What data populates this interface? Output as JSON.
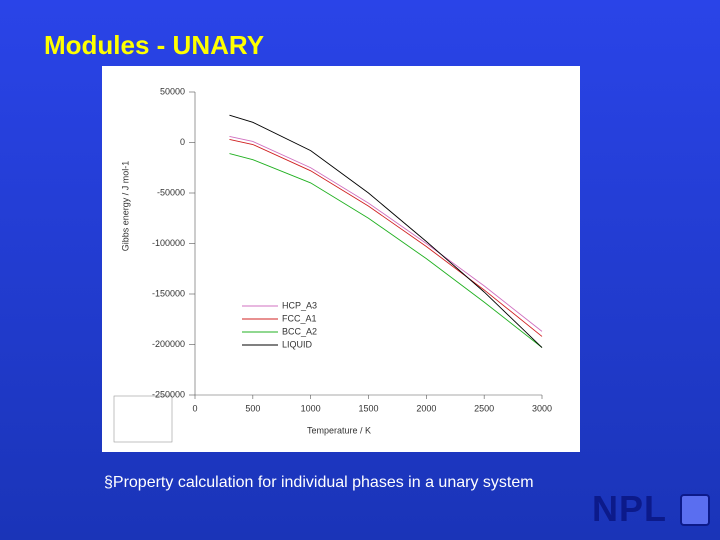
{
  "slide": {
    "title": "Modules - UNARY",
    "bullet": "§Property calculation for individual phases in a unary system",
    "logo": "NPL"
  },
  "chart_data": {
    "type": "line",
    "x_label": "Temperature / K",
    "y_label": "Gibbs energy / J mol-1",
    "x": [
      298,
      500,
      1000,
      1500,
      2000,
      2500,
      3000
    ],
    "series": [
      {
        "name": "HCP_A3",
        "color": "#d070c0",
        "values": [
          6000,
          1000,
          -25000,
          -60000,
          -100000,
          -142000,
          -187000
        ]
      },
      {
        "name": "FCC_A1",
        "color": "#d02020",
        "values": [
          3000,
          -2000,
          -28000,
          -63000,
          -103000,
          -146000,
          -192000
        ]
      },
      {
        "name": "BCC_A2",
        "color": "#20b020",
        "values": [
          -11000,
          -17000,
          -40000,
          -75000,
          -115000,
          -158000,
          -203000
        ]
      },
      {
        "name": "LIQUID",
        "color": "#000000",
        "values": [
          27000,
          20000,
          -8000,
          -50000,
          -98000,
          -148000,
          -203000
        ]
      }
    ],
    "xlim": [
      0,
      3000
    ],
    "xticks": [
      0,
      500,
      1000,
      1500,
      2000,
      2500,
      3000
    ],
    "ylim": [
      -250000,
      50000
    ],
    "yticks": [
      50000,
      0,
      -50000,
      -100000,
      -150000,
      -200000,
      -250000
    ]
  }
}
